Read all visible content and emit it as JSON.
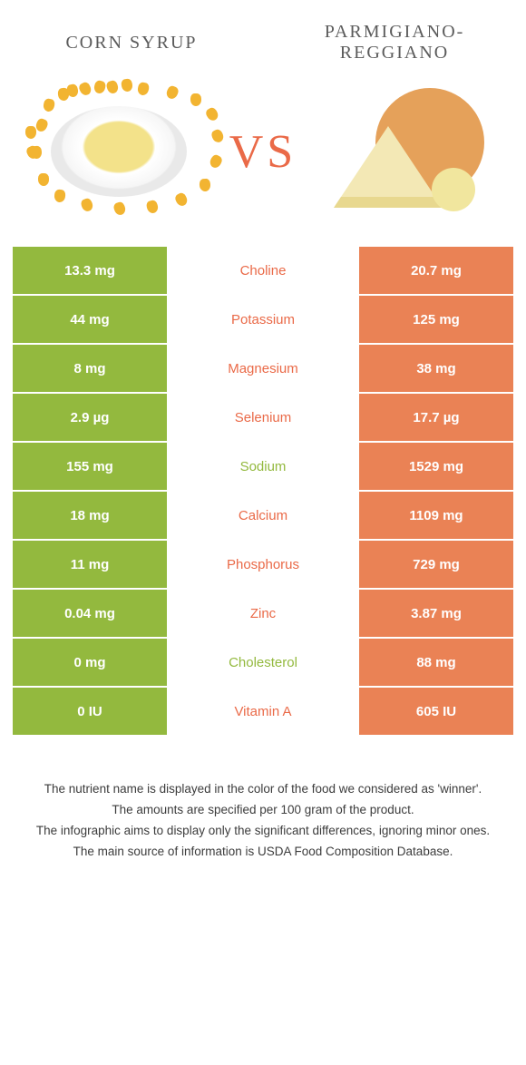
{
  "colors": {
    "left": "#93b93e",
    "right": "#ea8255",
    "mid_left": "#93b93e",
    "mid_right": "#ea6a48",
    "title_text": "#5b5b5b",
    "vs": "#ea6a48",
    "background": "#ffffff"
  },
  "header": {
    "left_title": "CORN SYRUP",
    "right_title_line1": "PARMIGIANO-",
    "right_title_line2": "REGGIANO",
    "vs_label": "VS"
  },
  "rows": [
    {
      "nutrient": "Choline",
      "left": "13.3 mg",
      "right": "20.7 mg",
      "winner": "right"
    },
    {
      "nutrient": "Potassium",
      "left": "44 mg",
      "right": "125 mg",
      "winner": "right"
    },
    {
      "nutrient": "Magnesium",
      "left": "8 mg",
      "right": "38 mg",
      "winner": "right"
    },
    {
      "nutrient": "Selenium",
      "left": "2.9 µg",
      "right": "17.7 µg",
      "winner": "right"
    },
    {
      "nutrient": "Sodium",
      "left": "155 mg",
      "right": "1529 mg",
      "winner": "left"
    },
    {
      "nutrient": "Calcium",
      "left": "18 mg",
      "right": "1109 mg",
      "winner": "right"
    },
    {
      "nutrient": "Phosphorus",
      "left": "11 mg",
      "right": "729 mg",
      "winner": "right"
    },
    {
      "nutrient": "Zinc",
      "left": "0.04 mg",
      "right": "3.87 mg",
      "winner": "right"
    },
    {
      "nutrient": "Cholesterol",
      "left": "0 mg",
      "right": "88 mg",
      "winner": "left"
    },
    {
      "nutrient": "Vitamin A",
      "left": "0 IU",
      "right": "605 IU",
      "winner": "right"
    }
  ],
  "footnotes": [
    "The nutrient name is displayed in the color of the food we considered as 'winner'.",
    "The amounts are specified per 100 gram of the product.",
    "The infographic aims to display only the significant differences, ignoring minor ones.",
    "The main source of information is USDA Food Composition Database."
  ]
}
